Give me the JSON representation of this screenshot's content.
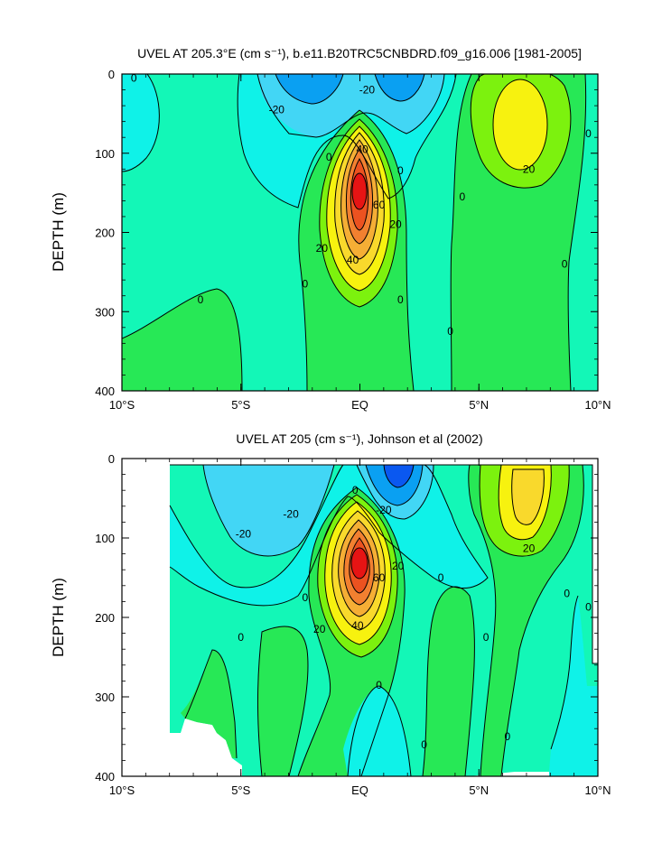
{
  "chart_data": [
    {
      "type": "contour",
      "title": "UVEL AT 205.3°E (cm s⁻¹), b.e11.B20TRC5CNBDRD.f09_g16.006 [1981-2005]",
      "xlabel": "",
      "ylabel": "DEPTH (m)",
      "xlim": [
        -10,
        10
      ],
      "ylim": [
        400,
        0
      ],
      "x_ticks": [
        {
          "value": -10,
          "label": "10°S"
        },
        {
          "value": -5,
          "label": "5°S"
        },
        {
          "value": 0,
          "label": "EQ"
        },
        {
          "value": 5,
          "label": "5°N"
        },
        {
          "value": 10,
          "label": "10°N"
        }
      ],
      "y_ticks": [
        0,
        100,
        200,
        300,
        400
      ],
      "contour_interval": 10,
      "features": [
        {
          "name": "Equatorial Undercurrent core",
          "lat": 0,
          "depth": 150,
          "max_value": 80
        },
        {
          "name": "North Equatorial Countercurrent",
          "lat": 6.5,
          "depth": 80,
          "max_value": 25
        },
        {
          "name": "South Equatorial Current (north branch)",
          "lat": 1.3,
          "depth": 10,
          "min_value": -30
        },
        {
          "name": "South Equatorial Current (south branch)",
          "lat": -2.3,
          "depth": 10,
          "min_value": -25
        }
      ],
      "contour_labels": [
        {
          "lat": -9.5,
          "depth": 5,
          "label": "0"
        },
        {
          "lat": -3.5,
          "depth": 45,
          "label": "-20"
        },
        {
          "lat": 0.3,
          "depth": 20,
          "label": "-20"
        },
        {
          "lat": -1.3,
          "depth": 105,
          "label": "0"
        },
        {
          "lat": 1.7,
          "depth": 122,
          "label": "0"
        },
        {
          "lat": 0.1,
          "depth": 95,
          "label": "40"
        },
        {
          "lat": 0.8,
          "depth": 165,
          "label": "60"
        },
        {
          "lat": 1.5,
          "depth": 190,
          "label": "20"
        },
        {
          "lat": -1.6,
          "depth": 220,
          "label": "20"
        },
        {
          "lat": -0.3,
          "depth": 235,
          "label": "40"
        },
        {
          "lat": -2.3,
          "depth": 265,
          "label": "0"
        },
        {
          "lat": 1.7,
          "depth": 285,
          "label": "0"
        },
        {
          "lat": -6.7,
          "depth": 285,
          "label": "0"
        },
        {
          "lat": 4.3,
          "depth": 155,
          "label": "0"
        },
        {
          "lat": 3.8,
          "depth": 325,
          "label": "0"
        },
        {
          "lat": 7.1,
          "depth": 120,
          "label": "20"
        },
        {
          "lat": 9.6,
          "depth": 75,
          "label": "0"
        },
        {
          "lat": 8.6,
          "depth": 240,
          "label": "0"
        }
      ]
    },
    {
      "type": "contour",
      "title": "UVEL AT 205 (cm s⁻¹), Johnson et al (2002)",
      "xlabel": "",
      "ylabel": "DEPTH (m)",
      "xlim": [
        -10,
        10
      ],
      "ylim": [
        400,
        0
      ],
      "x_ticks": [
        {
          "value": -10,
          "label": "10°S"
        },
        {
          "value": -5,
          "label": "5°S"
        },
        {
          "value": 0,
          "label": "EQ"
        },
        {
          "value": 5,
          "label": "5°N"
        },
        {
          "value": 10,
          "label": "10°N"
        }
      ],
      "y_ticks": [
        0,
        100,
        200,
        300,
        400
      ],
      "contour_interval": 10,
      "data_extent": {
        "lat": [
          -8,
          9.8
        ],
        "depth": [
          0,
          400
        ]
      },
      "features": [
        {
          "name": "Equatorial Undercurrent core",
          "lat": 0,
          "depth": 130,
          "max_value": 80
        },
        {
          "name": "North Equatorial Countercurrent",
          "lat": 6.8,
          "depth": 50,
          "max_value": 30
        },
        {
          "name": "South Equatorial Current",
          "lat": 1.5,
          "depth": 10,
          "min_value": -40
        }
      ],
      "contour_labels": [
        {
          "lat": -4.9,
          "depth": 95,
          "label": "-20"
        },
        {
          "lat": -2.9,
          "depth": 70,
          "label": "-20"
        },
        {
          "lat": -0.2,
          "depth": 40,
          "label": "0"
        },
        {
          "lat": 1.0,
          "depth": 65,
          "label": "-20"
        },
        {
          "lat": 1.6,
          "depth": 135,
          "label": "20"
        },
        {
          "lat": 0.8,
          "depth": 150,
          "label": "60"
        },
        {
          "lat": -1.7,
          "depth": 215,
          "label": "20"
        },
        {
          "lat": -0.1,
          "depth": 210,
          "label": "40"
        },
        {
          "lat": -2.3,
          "depth": 175,
          "label": "0"
        },
        {
          "lat": -5.0,
          "depth": 225,
          "label": "0"
        },
        {
          "lat": 0.8,
          "depth": 285,
          "label": "0"
        },
        {
          "lat": 3.4,
          "depth": 150,
          "label": "0"
        },
        {
          "lat": 7.1,
          "depth": 113,
          "label": "20"
        },
        {
          "lat": 8.7,
          "depth": 170,
          "label": "0"
        },
        {
          "lat": 9.6,
          "depth": 187,
          "label": "0"
        },
        {
          "lat": 5.3,
          "depth": 225,
          "label": "0"
        },
        {
          "lat": 2.7,
          "depth": 360,
          "label": "0"
        },
        {
          "lat": 6.2,
          "depth": 350,
          "label": "0"
        }
      ]
    }
  ],
  "colors": {
    "blue": "#0a58f0",
    "medium_blue": "#0aa0f2",
    "light_blue": "#42d6f5",
    "cyan": "#0ff2e8",
    "aquamarine": "#13f7b7",
    "light_green": "#27e856",
    "yellow_green": "#7cf20e",
    "yellow": "#f7f20f",
    "gold": "#f9d92c",
    "orange": "#f5ae35",
    "dark_orange": "#f28030",
    "red_orange": "#ec5220",
    "red": "#e61414"
  }
}
